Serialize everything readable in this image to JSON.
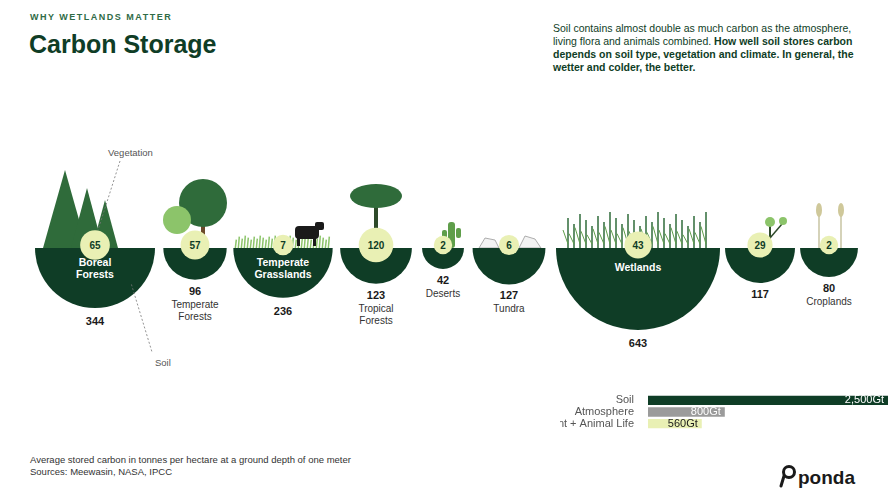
{
  "header": {
    "kicker": "WHY WETLANDS MATTER",
    "title": "Carbon Storage",
    "description": "Soil contains almost double as much carbon as the atmosphere, living flora and animals combined.",
    "description_bold": "How well soil stores carbon depends on soil type, vegetation and climate. In general, the wetter and colder, the better."
  },
  "ecosystems": {
    "categories": [
      "Boreal Forests",
      "Temperate Forests",
      "Temperate Grasslands",
      "Tropical Forests",
      "Deserts",
      "Tundra",
      "Wetlands",
      null,
      "Croplands"
    ],
    "vegetation": [
      65,
      57,
      7,
      120,
      2,
      6,
      43,
      29,
      2
    ],
    "soil": [
      344,
      96,
      236,
      123,
      42,
      127,
      643,
      117,
      80
    ],
    "annotations": {
      "vegetation": "Vegetation",
      "soil": "Soil"
    }
  },
  "chart_data": {
    "type": "bar",
    "orientation": "horizontal",
    "categories": [
      "Soil",
      "Atmosphere",
      "Plant + Animal Life"
    ],
    "values": [
      2500,
      800,
      560
    ],
    "value_labels": [
      "2,500Gt",
      "800Gt",
      "560Gt"
    ],
    "colors": [
      "#0f3d26",
      "#9b9b9b",
      "#e9f0b4"
    ],
    "xlim": [
      0,
      2500
    ],
    "data_labels": true,
    "tick_labels": "y",
    "grid": false
  },
  "footer": {
    "note": "Average stored carbon in tonnes per hectare at a ground depth of one meter",
    "sources": "Sources: Meewasin, NASA, IPCC",
    "logo": "ponda"
  }
}
